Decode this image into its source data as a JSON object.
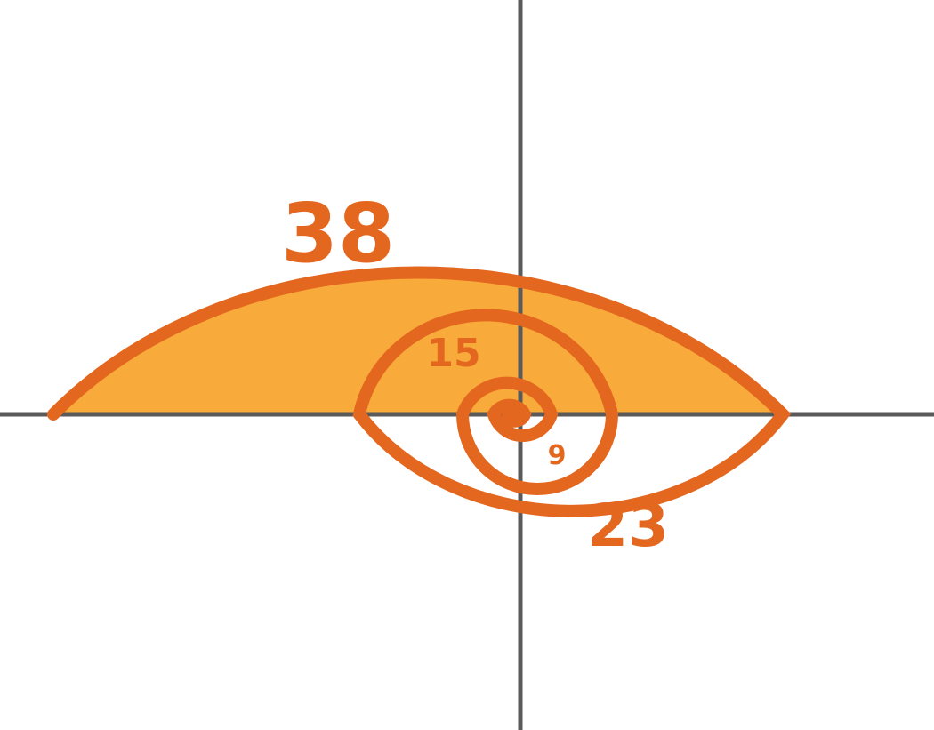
{
  "colors": {
    "axis": "#5a5a5a",
    "spiral": "#e4671f",
    "fill": "#f8ab3b",
    "label": "#e4671f",
    "background": "#ffffff"
  },
  "labels": {
    "outer_region": "38",
    "middle_region": "23",
    "inner_region": "15",
    "innermost_region": "9"
  }
}
